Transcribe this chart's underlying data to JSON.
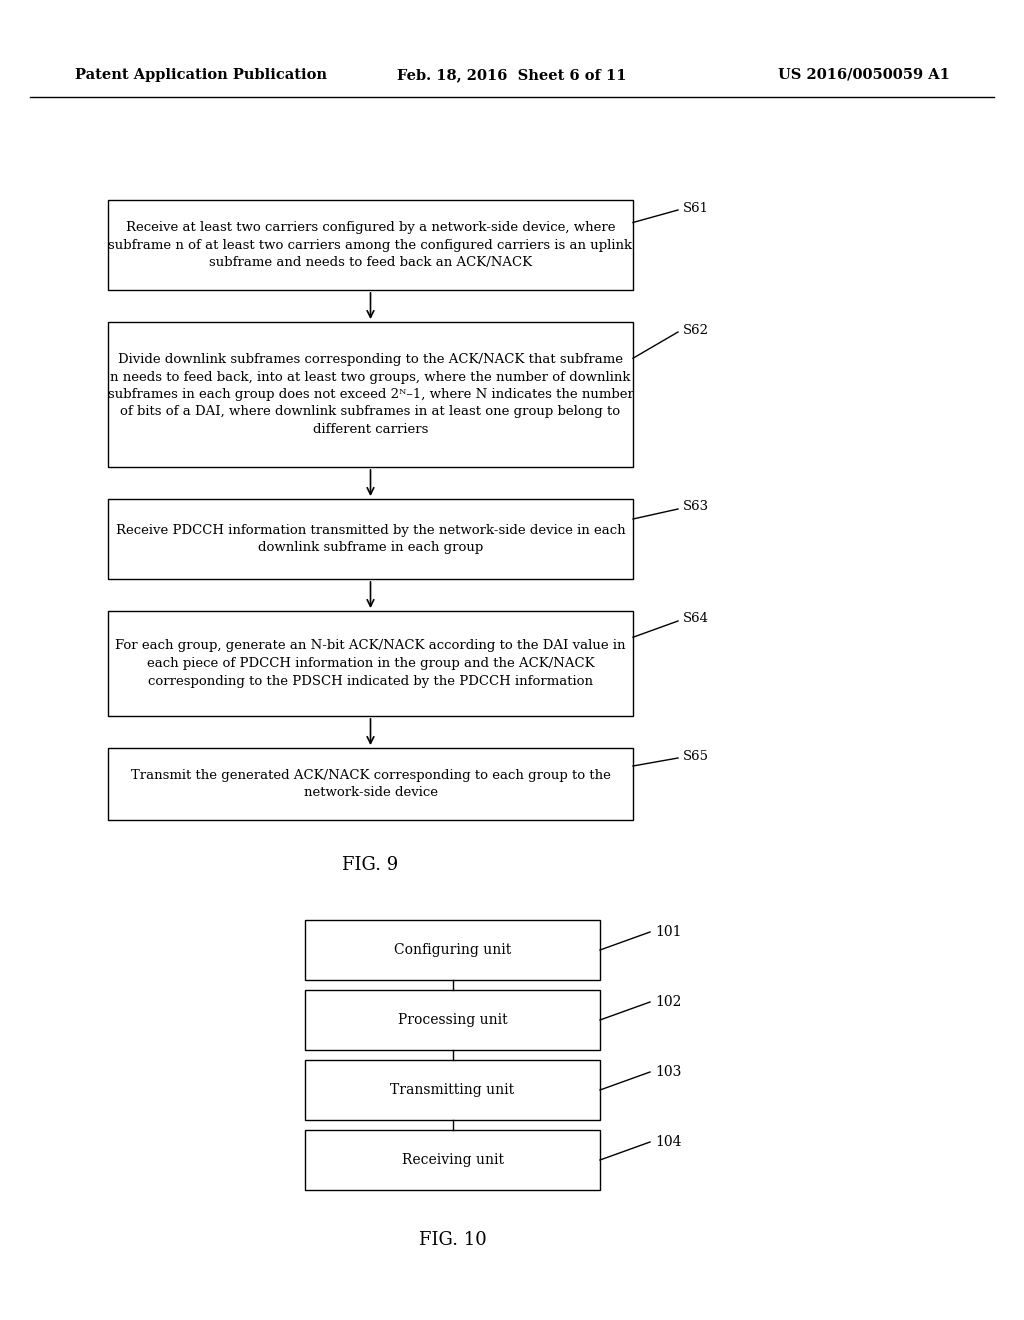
{
  "background_color": "#ffffff",
  "header_left": "Patent Application Publication",
  "header_mid": "Feb. 18, 2016  Sheet 6 of 11",
  "header_right": "US 2016/0050059 A1",
  "fig9_title": "FIG. 9",
  "fig10_title": "FIG. 10",
  "flowchart_boxes": [
    {
      "label": "S61",
      "text": "Receive at least two carriers configured by a network-side device, where\nsubframe n of at least two carriers among the configured carriers is an uplink\nsubframe and needs to feed back an ACK/NACK"
    },
    {
      "label": "S62",
      "text": "Divide downlink subframes corresponding to the ACK/NACK that subframe\nn needs to feed back, into at least two groups, where the number of downlink\nsubframes in each group does not exceed 2ᴺ–1, where N indicates the number\nof bits of a DAI, where downlink subframes in at least one group belong to\ndifferent carriers"
    },
    {
      "label": "S63",
      "text": "Receive PDCCH information transmitted by the network-side device in each\ndownlink subframe in each group"
    },
    {
      "label": "S64",
      "text": "For each group, generate an N-bit ACK/NACK according to the DAI value in\neach piece of PDCCH information in the group and the ACK/NACK\ncorresponding to the PDSCH indicated by the PDCCH information"
    },
    {
      "label": "S65",
      "text": "Transmit the generated ACK/NACK corresponding to each group to the\nnetwork-side device"
    }
  ],
  "fig10_boxes": [
    {
      "label": "101",
      "text": "Configuring unit"
    },
    {
      "label": "102",
      "text": "Processing unit"
    },
    {
      "label": "103",
      "text": "Transmitting unit"
    },
    {
      "label": "104",
      "text": "Receiving unit"
    }
  ]
}
